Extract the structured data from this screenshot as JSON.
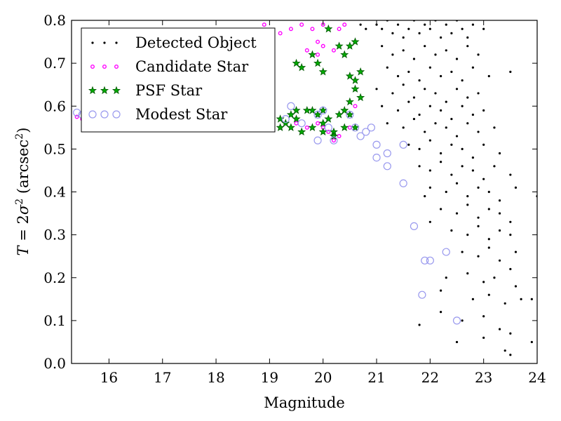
{
  "chart_data": {
    "type": "scatter",
    "title": "",
    "xlabel": "Magnitude",
    "ylabel": "T = 2σ² (arcsec²)",
    "ylabel_parts": {
      "pre": "T",
      "eq": " = 2",
      "sigma": "σ",
      "two": "2",
      "mid": " (arcsec",
      "sup": "2",
      "post": ")"
    },
    "xlim": [
      15.3,
      24.0
    ],
    "ylim": [
      0.0,
      0.8
    ],
    "xticks": [
      "16",
      "17",
      "18",
      "19",
      "20",
      "21",
      "22",
      "23",
      "24"
    ],
    "yticks": [
      "0.0",
      "0.1",
      "0.2",
      "0.3",
      "0.4",
      "0.5",
      "0.6",
      "0.7",
      "0.8"
    ],
    "grid": false,
    "legend_position": "top-left",
    "series": [
      {
        "name": "Detected Object",
        "marker": "dot",
        "color": "#000000",
        "points": [
          [
            21.0,
            0.79
          ],
          [
            21.1,
            0.78
          ],
          [
            21.2,
            0.8
          ],
          [
            21.3,
            0.77
          ],
          [
            21.4,
            0.79
          ],
          [
            21.5,
            0.76
          ],
          [
            21.6,
            0.78
          ],
          [
            21.7,
            0.8
          ],
          [
            21.8,
            0.77
          ],
          [
            21.9,
            0.79
          ],
          [
            22.0,
            0.78
          ],
          [
            22.1,
            0.8
          ],
          [
            22.2,
            0.76
          ],
          [
            22.3,
            0.79
          ],
          [
            22.4,
            0.77
          ],
          [
            22.5,
            0.8
          ],
          [
            22.6,
            0.78
          ],
          [
            22.7,
            0.76
          ],
          [
            22.8,
            0.79
          ],
          [
            23.0,
            0.78
          ],
          [
            21.1,
            0.74
          ],
          [
            21.3,
            0.72
          ],
          [
            21.5,
            0.73
          ],
          [
            21.7,
            0.71
          ],
          [
            21.9,
            0.74
          ],
          [
            22.1,
            0.72
          ],
          [
            22.3,
            0.73
          ],
          [
            22.5,
            0.71
          ],
          [
            22.7,
            0.74
          ],
          [
            22.9,
            0.72
          ],
          [
            21.2,
            0.69
          ],
          [
            21.4,
            0.67
          ],
          [
            21.6,
            0.68
          ],
          [
            21.8,
            0.66
          ],
          [
            22.0,
            0.69
          ],
          [
            22.2,
            0.67
          ],
          [
            22.4,
            0.68
          ],
          [
            22.6,
            0.66
          ],
          [
            22.8,
            0.69
          ],
          [
            23.1,
            0.67
          ],
          [
            21.0,
            0.64
          ],
          [
            21.3,
            0.63
          ],
          [
            21.5,
            0.65
          ],
          [
            21.7,
            0.62
          ],
          [
            21.9,
            0.64
          ],
          [
            22.1,
            0.63
          ],
          [
            22.3,
            0.61
          ],
          [
            22.5,
            0.64
          ],
          [
            22.7,
            0.62
          ],
          [
            22.9,
            0.63
          ],
          [
            21.1,
            0.6
          ],
          [
            21.4,
            0.59
          ],
          [
            21.6,
            0.61
          ],
          [
            21.8,
            0.58
          ],
          [
            22.0,
            0.6
          ],
          [
            22.2,
            0.59
          ],
          [
            22.4,
            0.57
          ],
          [
            22.6,
            0.6
          ],
          [
            22.8,
            0.58
          ],
          [
            23.0,
            0.59
          ],
          [
            21.2,
            0.56
          ],
          [
            21.5,
            0.55
          ],
          [
            21.7,
            0.57
          ],
          [
            21.9,
            0.54
          ],
          [
            22.1,
            0.56
          ],
          [
            22.3,
            0.55
          ],
          [
            22.5,
            0.53
          ],
          [
            22.7,
            0.56
          ],
          [
            22.9,
            0.54
          ],
          [
            23.2,
            0.55
          ],
          [
            21.6,
            0.51
          ],
          [
            21.8,
            0.5
          ],
          [
            22.0,
            0.52
          ],
          [
            22.2,
            0.49
          ],
          [
            22.4,
            0.51
          ],
          [
            22.6,
            0.5
          ],
          [
            22.8,
            0.48
          ],
          [
            23.0,
            0.51
          ],
          [
            23.3,
            0.49
          ],
          [
            21.8,
            0.46
          ],
          [
            22.0,
            0.45
          ],
          [
            22.2,
            0.47
          ],
          [
            22.4,
            0.44
          ],
          [
            22.6,
            0.46
          ],
          [
            22.8,
            0.45
          ],
          [
            23.0,
            0.43
          ],
          [
            23.2,
            0.46
          ],
          [
            23.5,
            0.44
          ],
          [
            22.0,
            0.41
          ],
          [
            22.3,
            0.4
          ],
          [
            22.5,
            0.42
          ],
          [
            22.7,
            0.39
          ],
          [
            22.9,
            0.41
          ],
          [
            23.1,
            0.4
          ],
          [
            23.3,
            0.38
          ],
          [
            23.6,
            0.41
          ],
          [
            24.0,
            0.39
          ],
          [
            22.2,
            0.36
          ],
          [
            22.5,
            0.35
          ],
          [
            22.7,
            0.37
          ],
          [
            22.9,
            0.34
          ],
          [
            23.1,
            0.36
          ],
          [
            23.3,
            0.35
          ],
          [
            23.5,
            0.33
          ],
          [
            22.4,
            0.31
          ],
          [
            22.7,
            0.3
          ],
          [
            22.9,
            0.32
          ],
          [
            23.1,
            0.29
          ],
          [
            23.3,
            0.31
          ],
          [
            23.5,
            0.3
          ],
          [
            23.6,
            0.26
          ],
          [
            22.6,
            0.26
          ],
          [
            22.9,
            0.25
          ],
          [
            23.1,
            0.27
          ],
          [
            23.3,
            0.24
          ],
          [
            23.5,
            0.22
          ],
          [
            22.3,
            0.2
          ],
          [
            22.7,
            0.21
          ],
          [
            23.0,
            0.19
          ],
          [
            23.2,
            0.2
          ],
          [
            23.6,
            0.18
          ],
          [
            23.7,
            0.15
          ],
          [
            22.2,
            0.17
          ],
          [
            22.8,
            0.15
          ],
          [
            23.1,
            0.16
          ],
          [
            23.4,
            0.14
          ],
          [
            23.9,
            0.15
          ],
          [
            22.2,
            0.12
          ],
          [
            22.6,
            0.1
          ],
          [
            23.0,
            0.11
          ],
          [
            23.3,
            0.08
          ],
          [
            23.5,
            0.07
          ],
          [
            21.8,
            0.09
          ],
          [
            22.5,
            0.05
          ],
          [
            23.0,
            0.06
          ],
          [
            23.4,
            0.03
          ],
          [
            23.5,
            0.02
          ],
          [
            23.9,
            0.05
          ],
          [
            20.6,
            0.81
          ],
          [
            20.7,
            0.79
          ],
          [
            20.8,
            0.78
          ],
          [
            21.4,
            0.81
          ],
          [
            23.5,
            0.68
          ],
          [
            21.9,
            0.39
          ],
          [
            22.0,
            0.33
          ]
        ]
      },
      {
        "name": "Candidate Star",
        "marker": "small-circle",
        "color": "#ff00ff",
        "points": [
          [
            18.9,
            0.79
          ],
          [
            19.2,
            0.77
          ],
          [
            19.4,
            0.78
          ],
          [
            19.6,
            0.79
          ],
          [
            19.8,
            0.78
          ],
          [
            20.0,
            0.79
          ],
          [
            20.3,
            0.78
          ],
          [
            20.4,
            0.79
          ],
          [
            19.9,
            0.75
          ],
          [
            19.7,
            0.73
          ],
          [
            19.9,
            0.72
          ],
          [
            20.0,
            0.74
          ],
          [
            20.2,
            0.73
          ],
          [
            15.4,
            0.575
          ],
          [
            15.5,
            0.57
          ],
          [
            19.2,
            0.55
          ],
          [
            19.5,
            0.56
          ],
          [
            19.7,
            0.55
          ],
          [
            19.9,
            0.56
          ],
          [
            20.0,
            0.55
          ],
          [
            20.1,
            0.54
          ],
          [
            20.2,
            0.52
          ],
          [
            20.3,
            0.53
          ],
          [
            20.5,
            0.55
          ],
          [
            20.6,
            0.6
          ]
        ]
      },
      {
        "name": "PSF Star",
        "marker": "star",
        "color": "#008000",
        "points": [
          [
            20.1,
            0.78
          ],
          [
            20.3,
            0.74
          ],
          [
            20.5,
            0.74
          ],
          [
            20.6,
            0.75
          ],
          [
            20.4,
            0.72
          ],
          [
            19.5,
            0.7
          ],
          [
            19.6,
            0.69
          ],
          [
            19.8,
            0.72
          ],
          [
            19.9,
            0.7
          ],
          [
            20.0,
            0.68
          ],
          [
            20.5,
            0.67
          ],
          [
            20.6,
            0.66
          ],
          [
            20.6,
            0.64
          ],
          [
            20.7,
            0.62
          ],
          [
            20.5,
            0.61
          ],
          [
            20.7,
            0.68
          ],
          [
            19.2,
            0.57
          ],
          [
            19.3,
            0.56
          ],
          [
            19.4,
            0.58
          ],
          [
            19.5,
            0.57
          ],
          [
            19.7,
            0.59
          ],
          [
            19.9,
            0.58
          ],
          [
            20.0,
            0.59
          ],
          [
            20.1,
            0.57
          ],
          [
            20.3,
            0.58
          ],
          [
            20.4,
            0.59
          ],
          [
            20.5,
            0.58
          ],
          [
            19.2,
            0.55
          ],
          [
            19.4,
            0.55
          ],
          [
            19.6,
            0.54
          ],
          [
            19.8,
            0.55
          ],
          [
            20.0,
            0.56
          ],
          [
            20.2,
            0.54
          ],
          [
            20.4,
            0.55
          ],
          [
            20.6,
            0.55
          ],
          [
            19.5,
            0.59
          ],
          [
            19.8,
            0.59
          ],
          [
            20.0,
            0.54
          ],
          [
            20.2,
            0.53
          ]
        ]
      },
      {
        "name": "Modest Star",
        "marker": "open-circle",
        "color": "#9999ee",
        "points": [
          [
            15.4,
            0.585
          ],
          [
            15.5,
            0.58
          ],
          [
            19.3,
            0.57
          ],
          [
            19.4,
            0.6
          ],
          [
            19.6,
            0.56
          ],
          [
            19.9,
            0.58
          ],
          [
            20.1,
            0.55
          ],
          [
            20.2,
            0.52
          ],
          [
            20.5,
            0.58
          ],
          [
            20.6,
            0.55
          ],
          [
            20.7,
            0.53
          ],
          [
            20.8,
            0.54
          ],
          [
            20.9,
            0.55
          ],
          [
            21.0,
            0.51
          ],
          [
            21.0,
            0.48
          ],
          [
            21.2,
            0.49
          ],
          [
            21.2,
            0.46
          ],
          [
            21.5,
            0.42
          ],
          [
            21.5,
            0.51
          ],
          [
            21.7,
            0.32
          ],
          [
            21.9,
            0.24
          ],
          [
            22.0,
            0.24
          ],
          [
            21.85,
            0.16
          ],
          [
            22.3,
            0.26
          ],
          [
            22.5,
            0.1
          ],
          [
            19.9,
            0.52
          ],
          [
            20.0,
            0.59
          ]
        ]
      }
    ]
  }
}
